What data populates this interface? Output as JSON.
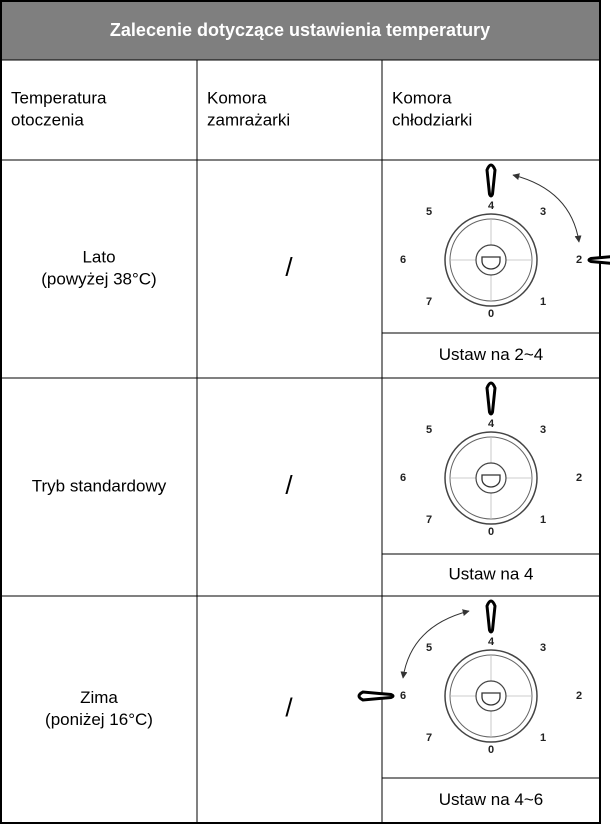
{
  "header": {
    "title": "Zalecenie dotyczące ustawienia temperatury"
  },
  "columns": [
    [
      "Temperatura",
      "otoczenia"
    ],
    [
      "Komora",
      "zamrażarki"
    ],
    [
      "Komora",
      "chłodziarki"
    ]
  ],
  "dial_labels": [
    "0",
    "1",
    "2",
    "3",
    "4",
    "5",
    "6",
    "7"
  ],
  "rows": [
    {
      "ambient": [
        "Lato",
        "(powyżej 38°C)"
      ],
      "freezer": "/",
      "setting": "Ustaw na 2~4"
    },
    {
      "ambient": [
        "Tryb standardowy"
      ],
      "freezer": "/",
      "setting": "Ustaw na 4"
    },
    {
      "ambient": [
        "Zima",
        "(poniżej 16°C)"
      ],
      "freezer": "/",
      "setting": "Ustaw na 4~6"
    }
  ]
}
